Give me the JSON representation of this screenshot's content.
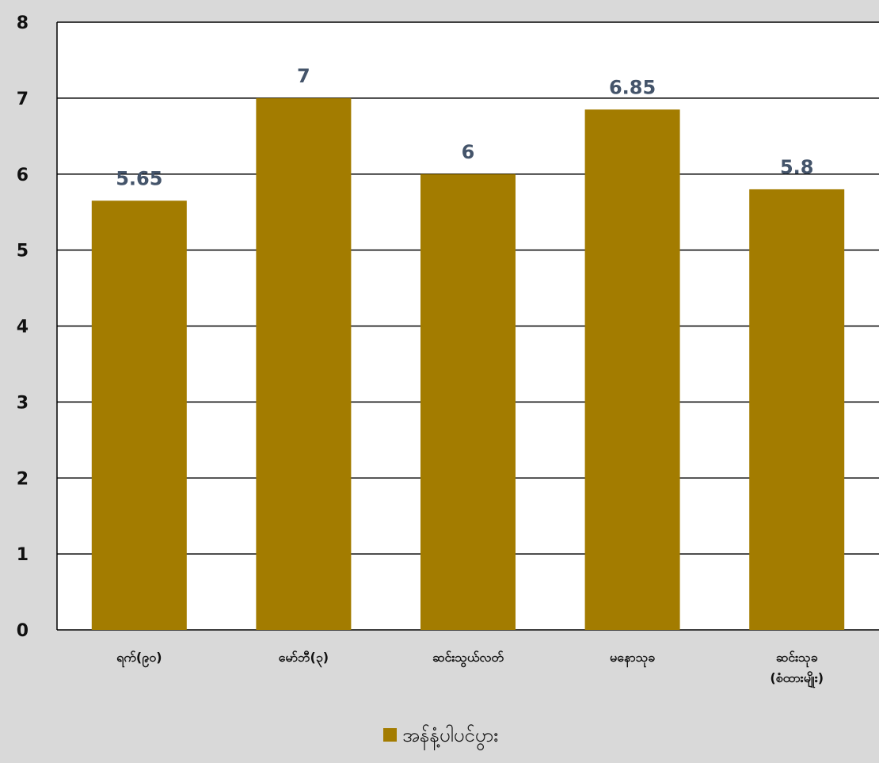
{
  "chart_data": {
    "type": "bar",
    "categories": [
      [
        "ရက်(၉၀)"
      ],
      [
        "မော်ဘီ(၃)"
      ],
      [
        "ဆင်းသွယ်လတ်"
      ],
      [
        "မနောသုခ"
      ],
      [
        "ဆင်းသုခ",
        "(စံထားမျိုး)"
      ]
    ],
    "series": [
      {
        "name": "အန်နံ့ပါပင်ပွား",
        "values": [
          5.65,
          7,
          6,
          6.85,
          5.8
        ],
        "color": "#a37c00"
      }
    ],
    "data_labels": [
      "5.65",
      "7",
      "6",
      "6.85",
      "5.8"
    ],
    "ylim": [
      0,
      8
    ],
    "yticks": [
      "0",
      "1",
      "2",
      "3",
      "4",
      "5",
      "6",
      "7",
      "8"
    ],
    "grid": true,
    "legend": "bottom",
    "background": "#d9d9d9",
    "plot_background": "#ffffff",
    "label_color": "#44546a"
  }
}
